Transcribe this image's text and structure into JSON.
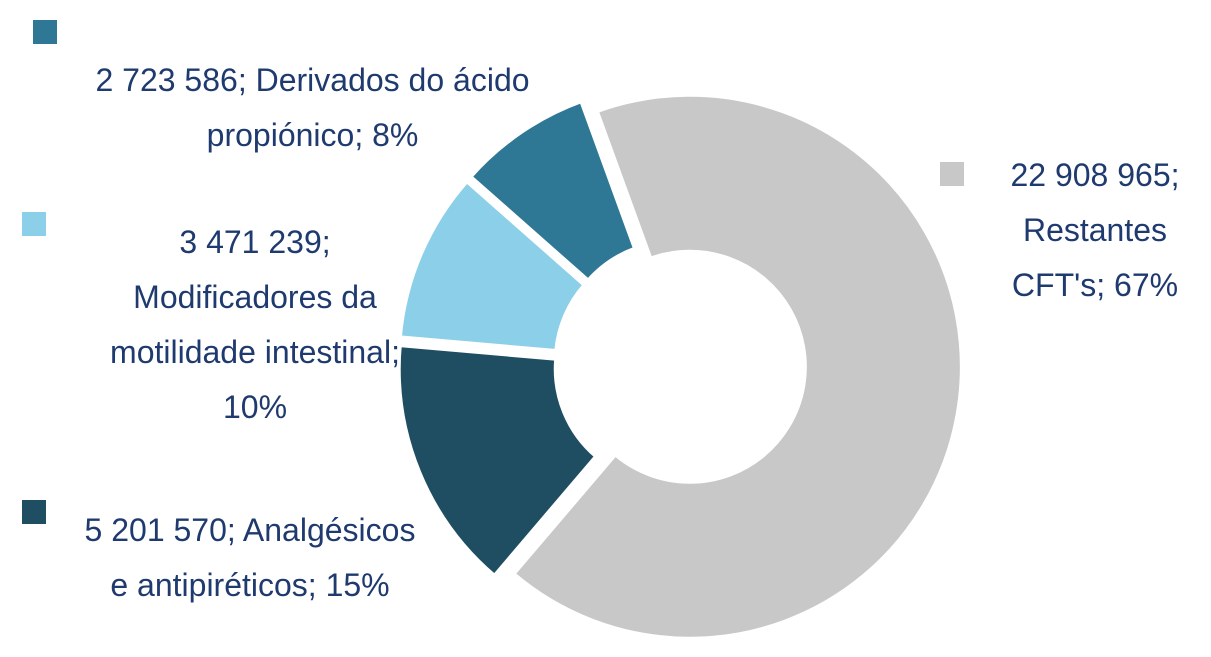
{
  "chart_data": {
    "type": "donut",
    "values": [
      22908965,
      5201570,
      3471239,
      2723586
    ],
    "value_labels": [
      "22 908 965; Restantes CFT's; 67%",
      "5 201 570; Analgésicos e antipiréticos; 15%",
      "3 471 239; Modificadores da motilidade intestinal; 10%",
      "2 723 586; Derivados do ácido propiónico; 8%"
    ],
    "colors": [
      "#c8c8c8",
      "#1f4e63",
      "#8ccfe8",
      "#2e7896"
    ]
  }
}
